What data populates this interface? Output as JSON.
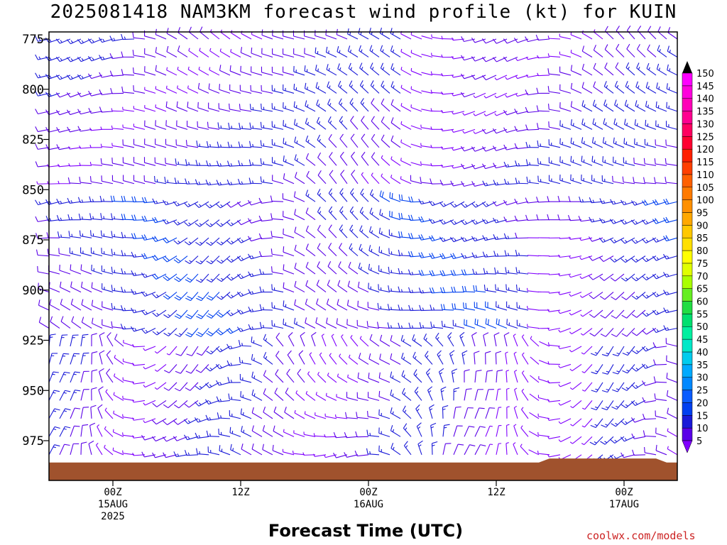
{
  "title": "2025081418 NAM3KM forecast wind profile (kt) for KUIN",
  "credit": "coolwx.com/models",
  "chart_data": {
    "type": "wind-barb time-height section",
    "xlabel": "Forecast Time (UTC)",
    "ylabel": "",
    "yaxis": {
      "ticks": [
        775,
        800,
        825,
        850,
        875,
        900,
        925,
        950,
        975
      ],
      "ylim": [
        775,
        991
      ],
      "inverted": true,
      "unit": "hPa"
    },
    "xaxis": {
      "ticks": [
        {
          "hour": 6,
          "lines": [
            "00Z",
            "15AUG",
            "2025"
          ]
        },
        {
          "hour": 18,
          "lines": [
            "12Z"
          ]
        },
        {
          "hour": 30,
          "lines": [
            "00Z",
            "16AUG"
          ]
        },
        {
          "hour": 42,
          "lines": [
            "12Z"
          ]
        },
        {
          "hour": 54,
          "lines": [
            "00Z",
            "17AUG"
          ]
        }
      ],
      "xlim": [
        0,
        59
      ],
      "unit": "forecast hour"
    },
    "wind_unit": "kt",
    "surface_color": "#a0522d",
    "colorbar": {
      "labels": [
        5,
        10,
        15,
        20,
        25,
        30,
        35,
        40,
        45,
        50,
        55,
        60,
        65,
        70,
        75,
        80,
        85,
        90,
        95,
        100,
        105,
        110,
        115,
        120,
        125,
        130,
        135,
        140,
        145,
        150
      ],
      "colors": [
        "#8000ff",
        "#5a00e8",
        "#1a1ad8",
        "#0040f0",
        "#0a5cff",
        "#0088ff",
        "#00aaff",
        "#00ccee",
        "#00e8c8",
        "#00f0a0",
        "#00e070",
        "#22dd44",
        "#66ee22",
        "#aaff00",
        "#e0ff00",
        "#ffff00",
        "#ffe000",
        "#ffc800",
        "#ffa800",
        "#ff9000",
        "#ff7a00",
        "#ff6000",
        "#ff4000",
        "#ff2000",
        "#ff0030",
        "#ff0060",
        "#ff0090",
        "#ff00b8",
        "#ff00dd",
        "#ff00ff"
      ]
    },
    "wind_field": [
      {
        "band": "775-850",
        "direction": "west-northwest",
        "speed_kt": [
          5,
          15
        ]
      },
      {
        "band": "850-925",
        "direction": "west to northwest",
        "speed_kt": [
          10,
          25
        ]
      },
      {
        "band": "925-990",
        "direction": "variable, northwest to southwest",
        "speed_kt": [
          5,
          25
        ]
      }
    ]
  }
}
